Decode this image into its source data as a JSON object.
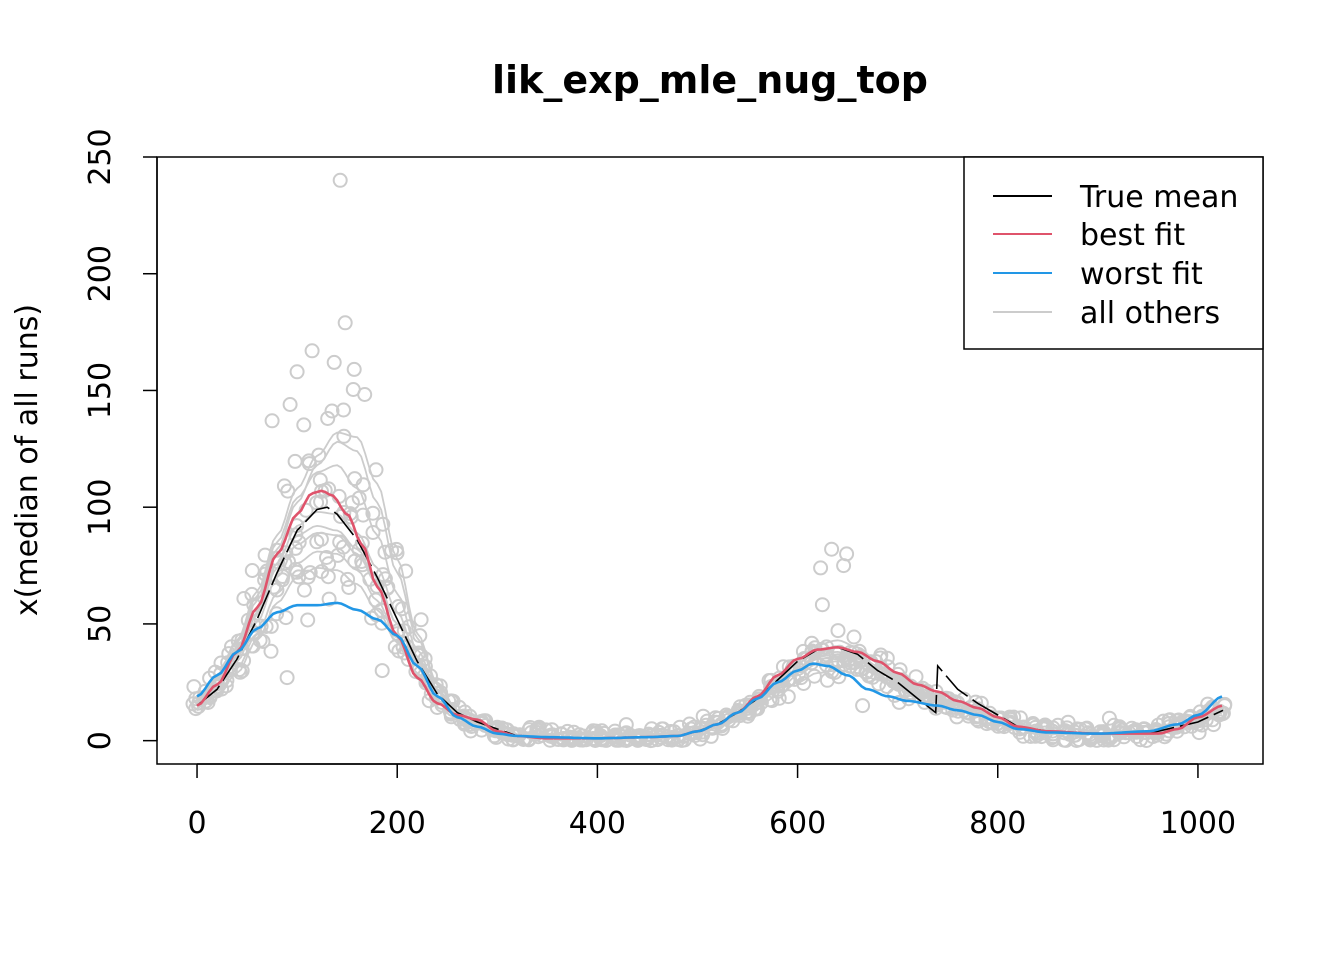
{
  "chart_data": {
    "type": "scatter",
    "title": "lik_exp_mle_nug_top",
    "xlabel": "",
    "ylabel": "x(median of all runs)",
    "xlim": [
      -40,
      1065
    ],
    "ylim": [
      -10,
      250
    ],
    "x_ticks": [
      0,
      200,
      400,
      600,
      800,
      1000
    ],
    "y_ticks": [
      0,
      50,
      100,
      150,
      200,
      250
    ],
    "x_tick_labels": [
      "0",
      "200",
      "400",
      "600",
      "800",
      "1000"
    ],
    "y_tick_labels": [
      "0",
      "50",
      "100",
      "150",
      "200",
      "250"
    ],
    "grid": false,
    "legend_position": "top-right",
    "legend": [
      {
        "label": "True mean",
        "color": "#000000"
      },
      {
        "label": "best fit",
        "color": "#DF536B"
      },
      {
        "label": "worst fit",
        "color": "#2297E6"
      },
      {
        "label": "all others",
        "color": "#CCCCCC"
      }
    ],
    "series": [
      {
        "name": "True mean",
        "color": "#000000",
        "x": [
          0,
          20,
          40,
          60,
          80,
          100,
          120,
          130,
          140,
          160,
          180,
          200,
          220,
          240,
          260,
          280,
          300,
          320,
          350,
          400,
          450,
          480,
          500,
          520,
          540,
          560,
          580,
          600,
          620,
          640,
          660,
          680,
          700,
          720,
          738,
          740,
          760,
          780,
          800,
          820,
          850,
          900,
          950,
          1000,
          1025
        ],
        "y": [
          15,
          22,
          35,
          52,
          72,
          90,
          99,
          100,
          97,
          86,
          70,
          52,
          34,
          20,
          12,
          8,
          5,
          2,
          1,
          1,
          1.5,
          2,
          4,
          7,
          12,
          18,
          26,
          34,
          39,
          40,
          37,
          30,
          25,
          18,
          12,
          32,
          22,
          16,
          11,
          6,
          4,
          3,
          3,
          8,
          13
        ]
      },
      {
        "name": "best fit",
        "color": "#DF536B",
        "x": [
          0,
          20,
          40,
          60,
          80,
          100,
          115,
          125,
          135,
          150,
          165,
          180,
          200,
          220,
          240,
          260,
          280,
          300,
          320,
          350,
          400,
          450,
          480,
          500,
          520,
          540,
          560,
          580,
          600,
          620,
          640,
          660,
          680,
          700,
          720,
          740,
          760,
          780,
          800,
          820,
          850,
          900,
          960,
          980,
          1000,
          1025
        ],
        "y": [
          15,
          24,
          38,
          57,
          80,
          97,
          106,
          107,
          105,
          97,
          84,
          66,
          45,
          27,
          16,
          11,
          9,
          4,
          2,
          1,
          1,
          1.5,
          2,
          4,
          7,
          12,
          19,
          28,
          35,
          39,
          40,
          38,
          34,
          29,
          24,
          21,
          17,
          14,
          10,
          6,
          4,
          3,
          3,
          5,
          10,
          15
        ]
      },
      {
        "name": "worst fit",
        "color": "#2297E6",
        "x": [
          0,
          20,
          40,
          60,
          80,
          100,
          120,
          140,
          160,
          180,
          200,
          220,
          240,
          260,
          280,
          300,
          320,
          350,
          400,
          450,
          480,
          500,
          520,
          540,
          560,
          580,
          600,
          615,
          630,
          650,
          670,
          690,
          710,
          740,
          760,
          780,
          800,
          820,
          850,
          900,
          950,
          980,
          1000,
          1025
        ],
        "y": [
          19,
          28,
          38,
          48,
          55,
          58,
          58,
          59,
          56,
          52,
          45,
          32,
          19,
          10,
          6,
          3,
          2,
          1.5,
          1,
          1.5,
          2,
          4,
          7,
          12,
          18,
          25,
          30,
          33,
          32,
          28,
          22,
          19,
          17,
          15,
          13,
          11,
          8,
          5,
          3.5,
          3,
          4,
          7,
          11,
          19
        ]
      }
    ],
    "others": {
      "name": "all others",
      "color": "#CCCCCC",
      "x": [
        0,
        20,
        40,
        60,
        80,
        100,
        120,
        140,
        160,
        180,
        200,
        220,
        240,
        260,
        280,
        300,
        330,
        370,
        420,
        460,
        490,
        520,
        550,
        580,
        600,
        620,
        640,
        660,
        680,
        700,
        720,
        740,
        760,
        780,
        800,
        830,
        870,
        920,
        960,
        1000,
        1025
      ],
      "curves": [
        [
          16,
          23,
          36,
          54,
          74,
          88,
          92,
          90,
          82,
          68,
          50,
          33,
          19,
          11,
          7,
          4,
          2,
          1,
          1,
          1.5,
          3,
          7,
          14,
          24,
          31,
          36,
          37,
          35,
          31,
          26,
          21,
          18,
          15,
          12,
          9,
          5,
          3,
          3,
          4,
          9,
          13
        ],
        [
          14,
          20,
          31,
          46,
          63,
          76,
          81,
          80,
          73,
          60,
          44,
          29,
          17,
          10,
          6,
          3,
          2,
          1,
          1,
          1.5,
          3,
          6,
          12,
          21,
          28,
          33,
          34,
          32,
          28,
          24,
          20,
          17,
          14,
          11,
          8,
          5,
          3,
          3,
          4,
          8,
          12
        ],
        [
          18,
          27,
          42,
          62,
          85,
          104,
          115,
          118,
          108,
          88,
          63,
          39,
          22,
          12,
          7,
          4,
          2,
          1,
          1,
          1.5,
          3,
          7,
          13,
          22,
          30,
          35,
          36,
          34,
          30,
          25,
          21,
          18,
          15,
          12,
          9,
          5,
          3,
          3,
          4,
          9,
          13
        ],
        [
          17,
          26,
          40,
          60,
          82,
          102,
          118,
          128,
          124,
          102,
          72,
          44,
          24,
          13,
          7,
          4,
          2,
          1,
          1,
          1.5,
          3,
          7,
          13,
          23,
          31,
          37,
          38,
          36,
          31,
          26,
          22,
          18,
          15,
          12,
          9,
          5,
          3,
          3,
          4,
          9,
          14
        ],
        [
          15,
          22,
          34,
          51,
          70,
          84,
          89,
          88,
          80,
          67,
          50,
          34,
          21,
          12,
          7,
          4,
          2,
          1,
          1,
          1.5,
          3,
          7,
          14,
          26,
          34,
          41,
          43,
          40,
          34,
          28,
          23,
          19,
          16,
          13,
          10,
          6,
          3,
          3,
          4,
          9,
          13
        ],
        [
          13,
          19,
          29,
          43,
          59,
          70,
          74,
          73,
          67,
          56,
          42,
          28,
          17,
          10,
          6,
          3,
          2,
          1,
          1,
          1.5,
          3,
          6,
          11,
          19,
          25,
          29,
          30,
          29,
          26,
          22,
          18,
          15,
          13,
          11,
          8,
          5,
          3,
          3,
          4,
          8,
          11
        ],
        [
          19,
          28,
          43,
          64,
          88,
          108,
          122,
          132,
          130,
          110,
          78,
          46,
          25,
          13,
          7,
          4,
          2,
          1,
          1,
          1.5,
          3,
          7,
          14,
          25,
          33,
          39,
          40,
          37,
          32,
          27,
          22,
          18,
          15,
          12,
          9,
          5,
          3,
          3,
          4,
          9,
          14
        ],
        [
          16,
          24,
          37,
          55,
          76,
          92,
          98,
          97,
          89,
          74,
          55,
          36,
          21,
          12,
          7,
          4,
          2,
          1,
          1,
          1.5,
          3,
          7,
          13,
          23,
          30,
          35,
          36,
          34,
          30,
          25,
          21,
          17,
          14,
          11,
          8,
          5,
          3,
          3,
          4,
          8,
          12
        ]
      ]
    },
    "points_seed": 7
  }
}
